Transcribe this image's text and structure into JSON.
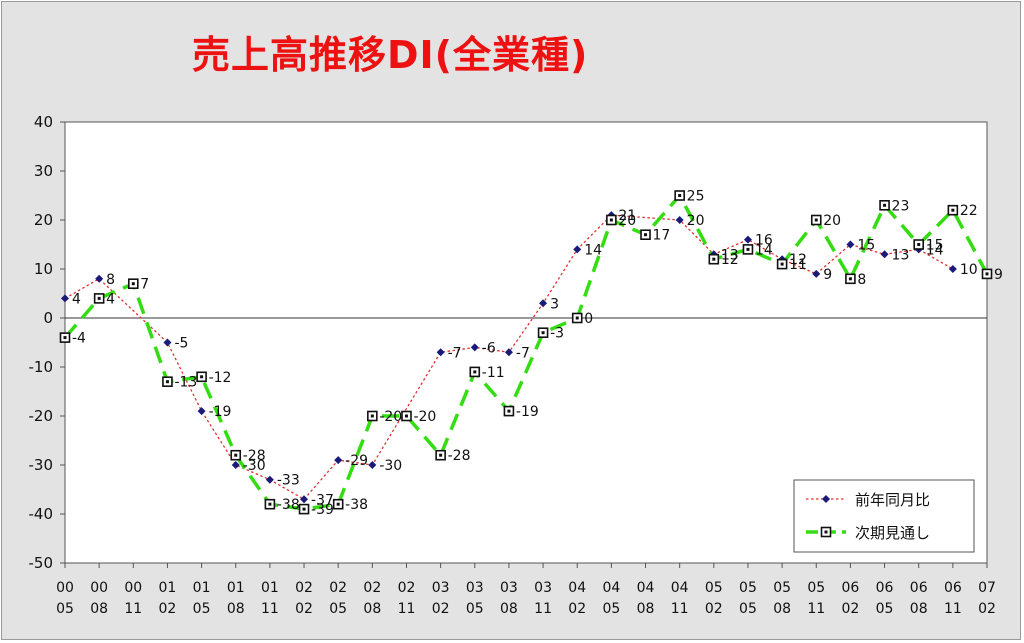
{
  "chart_data": {
    "type": "line",
    "title": "売上高推移DI(全業種)",
    "ylim": [
      -50,
      40
    ],
    "yticks": [
      40,
      30,
      20,
      10,
      0,
      -10,
      -20,
      -30,
      -40,
      -50
    ],
    "x": [
      [
        "00",
        "05"
      ],
      [
        "00",
        "08"
      ],
      [
        "00",
        "11"
      ],
      [
        "01",
        "02"
      ],
      [
        "01",
        "05"
      ],
      [
        "01",
        "08"
      ],
      [
        "01",
        "11"
      ],
      [
        "02",
        "02"
      ],
      [
        "02",
        "05"
      ],
      [
        "02",
        "08"
      ],
      [
        "02",
        "11"
      ],
      [
        "03",
        "02"
      ],
      [
        "03",
        "05"
      ],
      [
        "03",
        "08"
      ],
      [
        "03",
        "11"
      ],
      [
        "04",
        "02"
      ],
      [
        "04",
        "05"
      ],
      [
        "04",
        "08"
      ],
      [
        "04",
        "11"
      ],
      [
        "05",
        "02"
      ],
      [
        "05",
        "05"
      ],
      [
        "05",
        "08"
      ],
      [
        "05",
        "11"
      ],
      [
        "06",
        "02"
      ],
      [
        "06",
        "05"
      ],
      [
        "06",
        "08"
      ],
      [
        "06",
        "11"
      ],
      [
        "07",
        "02"
      ]
    ],
    "series": [
      {
        "name": "前年同月比",
        "color": "#e03030",
        "marker_color": "#1a1a7a",
        "values": [
          4,
          8,
          null,
          -5,
          -19,
          -30,
          -33,
          -37,
          -29,
          -30,
          null,
          -7,
          -6,
          -7,
          3,
          14,
          21,
          null,
          20,
          13,
          16,
          12,
          9,
          15,
          13,
          14,
          10,
          null
        ]
      },
      {
        "name": "次期見通し",
        "color": "#33dd11",
        "values": [
          -4,
          4,
          7,
          -13,
          -12,
          -28,
          -38,
          -39,
          -38,
          -20,
          -20,
          -28,
          -11,
          -19,
          -3,
          0,
          20,
          17,
          25,
          12,
          14,
          11,
          20,
          8,
          23,
          15,
          22,
          9
        ]
      }
    ],
    "labels": [
      {
        "s": 0,
        "i": 0,
        "text": "4"
      },
      {
        "s": 0,
        "i": 1,
        "text": "8"
      },
      {
        "s": 0,
        "i": 3,
        "text": "-5"
      },
      {
        "s": 0,
        "i": 4,
        "text": "-19"
      },
      {
        "s": 0,
        "i": 5,
        "text": "-30"
      },
      {
        "s": 0,
        "i": 6,
        "text": "-33"
      },
      {
        "s": 0,
        "i": 7,
        "text": "-37"
      },
      {
        "s": 0,
        "i": 8,
        "text": "-29"
      },
      {
        "s": 0,
        "i": 9,
        "text": "-30"
      },
      {
        "s": 0,
        "i": 11,
        "text": "-7"
      },
      {
        "s": 0,
        "i": 12,
        "text": "-6"
      },
      {
        "s": 0,
        "i": 13,
        "text": "-7"
      },
      {
        "s": 0,
        "i": 14,
        "text": "3"
      },
      {
        "s": 0,
        "i": 15,
        "text": "14"
      },
      {
        "s": 0,
        "i": 16,
        "text": "21"
      },
      {
        "s": 0,
        "i": 18,
        "text": "20"
      },
      {
        "s": 0,
        "i": 19,
        "text": "13"
      },
      {
        "s": 0,
        "i": 20,
        "text": "16"
      },
      {
        "s": 0,
        "i": 21,
        "text": "12"
      },
      {
        "s": 0,
        "i": 22,
        "text": "9"
      },
      {
        "s": 0,
        "i": 23,
        "text": "15"
      },
      {
        "s": 0,
        "i": 24,
        "text": "13"
      },
      {
        "s": 0,
        "i": 25,
        "text": "14"
      },
      {
        "s": 0,
        "i": 26,
        "text": "10"
      },
      {
        "s": 1,
        "i": 0,
        "text": "-4"
      },
      {
        "s": 1,
        "i": 1,
        "text": "4"
      },
      {
        "s": 1,
        "i": 2,
        "text": "7"
      },
      {
        "s": 1,
        "i": 3,
        "text": "-13"
      },
      {
        "s": 1,
        "i": 4,
        "text": "-12"
      },
      {
        "s": 1,
        "i": 5,
        "text": "-28"
      },
      {
        "s": 1,
        "i": 6,
        "text": "-38"
      },
      {
        "s": 1,
        "i": 7,
        "text": "-39"
      },
      {
        "s": 1,
        "i": 8,
        "text": "-38"
      },
      {
        "s": 1,
        "i": 9,
        "text": "-20"
      },
      {
        "s": 1,
        "i": 10,
        "text": "-20"
      },
      {
        "s": 1,
        "i": 11,
        "text": "-28"
      },
      {
        "s": 1,
        "i": 12,
        "text": "-11"
      },
      {
        "s": 1,
        "i": 13,
        "text": "-19"
      },
      {
        "s": 1,
        "i": 14,
        "text": "-3"
      },
      {
        "s": 1,
        "i": 15,
        "text": "0"
      },
      {
        "s": 1,
        "i": 16,
        "text": "20"
      },
      {
        "s": 1,
        "i": 17,
        "text": "17"
      },
      {
        "s": 1,
        "i": 18,
        "text": "25"
      },
      {
        "s": 1,
        "i": 19,
        "text": "12"
      },
      {
        "s": 1,
        "i": 20,
        "text": "14"
      },
      {
        "s": 1,
        "i": 21,
        "text": "11"
      },
      {
        "s": 1,
        "i": 22,
        "text": "20"
      },
      {
        "s": 1,
        "i": 23,
        "text": "8"
      },
      {
        "s": 1,
        "i": 24,
        "text": "23"
      },
      {
        "s": 1,
        "i": 25,
        "text": "15"
      },
      {
        "s": 1,
        "i": 26,
        "text": "22"
      },
      {
        "s": 1,
        "i": 27,
        "text": "9"
      }
    ],
    "legend_position": "bottom-right",
    "grid": false
  }
}
